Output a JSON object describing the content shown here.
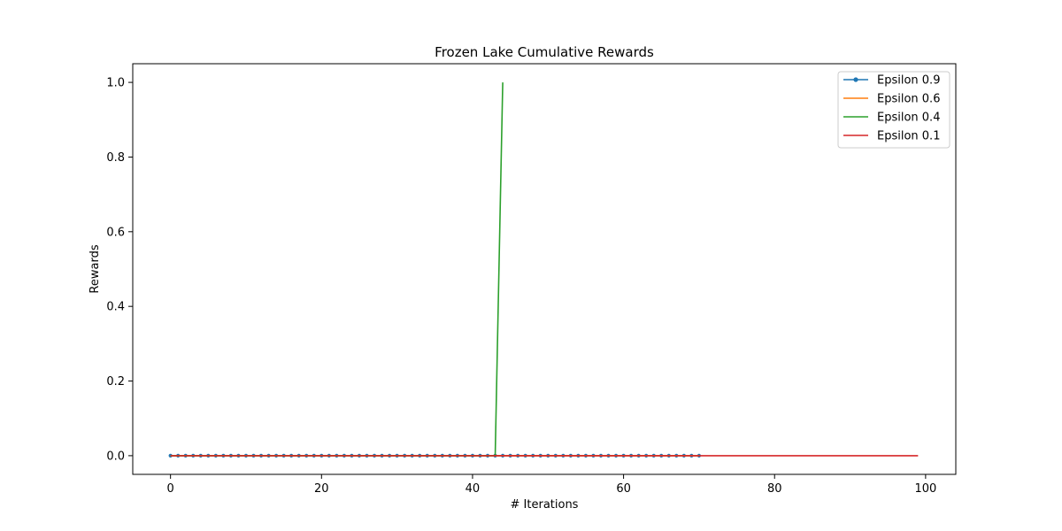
{
  "chart_data": {
    "type": "line",
    "title": "Frozen Lake  Cumulative Rewards",
    "xlabel": "# Iterations",
    "ylabel": "Rewards",
    "xlim": [
      -5,
      104
    ],
    "ylim": [
      -0.05,
      1.05
    ],
    "xticks": [
      0,
      20,
      40,
      60,
      80,
      100
    ],
    "yticks": [
      0.0,
      0.2,
      0.4,
      0.6,
      0.8,
      1.0
    ],
    "xtick_labels": [
      "0",
      "20",
      "40",
      "60",
      "80",
      "100"
    ],
    "ytick_labels": [
      "0.0",
      "0.2",
      "0.4",
      "0.6",
      "0.8",
      "1.0"
    ],
    "grid": false,
    "legend_position": "top-right",
    "series": [
      {
        "name": "Epsilon 0.9",
        "color": "#1f77b4",
        "marker": "dot",
        "x_start": 0,
        "x_end": 70,
        "values": [
          0,
          0,
          0,
          0,
          0,
          0,
          0,
          0,
          0,
          0,
          0,
          0,
          0,
          0,
          0,
          0,
          0,
          0,
          0,
          0,
          0,
          0,
          0,
          0,
          0,
          0,
          0,
          0,
          0,
          0,
          0,
          0,
          0,
          0,
          0,
          0,
          0,
          0,
          0,
          0,
          0,
          0,
          0,
          0,
          0,
          0,
          0,
          0,
          0,
          0,
          0,
          0,
          0,
          0,
          0,
          0,
          0,
          0,
          0,
          0,
          0,
          0,
          0,
          0,
          0,
          0,
          0,
          0,
          0,
          0,
          0
        ]
      },
      {
        "name": "Epsilon 0.6",
        "color": "#ff7f0e",
        "marker": "none",
        "x_start": 0,
        "x_end": 70,
        "values": [
          0,
          0,
          0,
          0,
          0,
          0,
          0,
          0,
          0,
          0,
          0,
          0,
          0,
          0,
          0,
          0,
          0,
          0,
          0,
          0,
          0,
          0,
          0,
          0,
          0,
          0,
          0,
          0,
          0,
          0,
          0,
          0,
          0,
          0,
          0,
          0,
          0,
          0,
          0,
          0,
          0,
          0,
          0,
          0,
          0,
          0,
          0,
          0,
          0,
          0,
          0,
          0,
          0,
          0,
          0,
          0,
          0,
          0,
          0,
          0,
          0,
          0,
          0,
          0,
          0,
          0,
          0,
          0,
          0,
          0,
          0
        ]
      },
      {
        "name": "Epsilon 0.4",
        "color": "#2ca02c",
        "marker": "none",
        "x_start": 0,
        "x_end": 44,
        "values": [
          0,
          0,
          0,
          0,
          0,
          0,
          0,
          0,
          0,
          0,
          0,
          0,
          0,
          0,
          0,
          0,
          0,
          0,
          0,
          0,
          0,
          0,
          0,
          0,
          0,
          0,
          0,
          0,
          0,
          0,
          0,
          0,
          0,
          0,
          0,
          0,
          0,
          0,
          0,
          0,
          0,
          0,
          0,
          0,
          1
        ]
      },
      {
        "name": "Epsilon 0.1",
        "color": "#d62728",
        "marker": "none",
        "x_start": 0,
        "x_end": 99,
        "values": [
          0,
          0,
          0,
          0,
          0,
          0,
          0,
          0,
          0,
          0,
          0,
          0,
          0,
          0,
          0,
          0,
          0,
          0,
          0,
          0,
          0,
          0,
          0,
          0,
          0,
          0,
          0,
          0,
          0,
          0,
          0,
          0,
          0,
          0,
          0,
          0,
          0,
          0,
          0,
          0,
          0,
          0,
          0,
          0,
          0,
          0,
          0,
          0,
          0,
          0,
          0,
          0,
          0,
          0,
          0,
          0,
          0,
          0,
          0,
          0,
          0,
          0,
          0,
          0,
          0,
          0,
          0,
          0,
          0,
          0,
          0,
          0,
          0,
          0,
          0,
          0,
          0,
          0,
          0,
          0,
          0,
          0,
          0,
          0,
          0,
          0,
          0,
          0,
          0,
          0,
          0,
          0,
          0,
          0,
          0,
          0,
          0,
          0,
          0,
          0
        ]
      }
    ]
  }
}
